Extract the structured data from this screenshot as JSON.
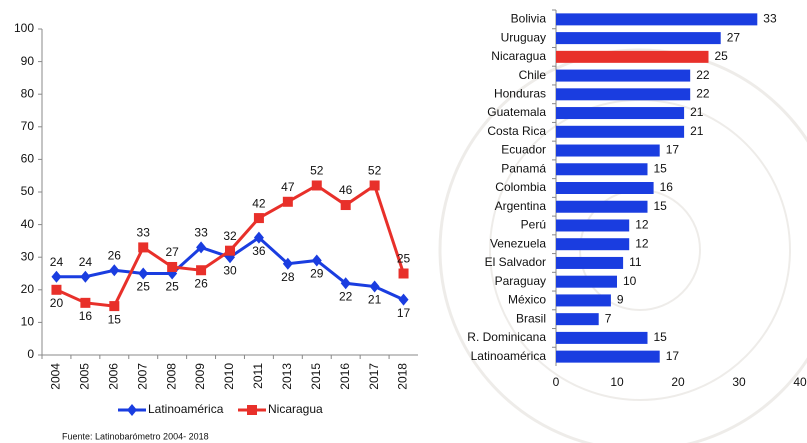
{
  "chart_data": [
    {
      "type": "line",
      "categories": [
        "2004",
        "2005",
        "2006",
        "2007",
        "2008",
        "2009",
        "2010",
        "2011",
        "2013",
        "2015",
        "2016",
        "2017",
        "2018"
      ],
      "series": [
        {
          "name": "Latinoamérica",
          "color": "#1a3de0",
          "marker": "diamond",
          "values": [
            24,
            24,
            26,
            25,
            25,
            33,
            30,
            36,
            28,
            29,
            22,
            21,
            17
          ]
        },
        {
          "name": "Nicaragua",
          "color": "#e8302a",
          "marker": "square",
          "values": [
            20,
            16,
            15,
            33,
            27,
            26,
            32,
            42,
            47,
            52,
            46,
            52,
            25
          ]
        }
      ],
      "ylim": [
        0,
        100
      ],
      "yticks": [
        0,
        10,
        20,
        30,
        40,
        50,
        60,
        70,
        80,
        90,
        100
      ],
      "grid": false,
      "legend": "bottom"
    },
    {
      "type": "hbar",
      "categories": [
        "Bolivia",
        "Uruguay",
        "Nicaragua",
        "Chile",
        "Honduras",
        "Guatemala",
        "Costa Rica",
        "Ecuador",
        "Panamá",
        "Colombia",
        "Argentina",
        "Perú",
        "Venezuela",
        "El Salvador",
        "Paraguay",
        "México",
        "Brasil",
        "R. Dominicana",
        "Latinoamérica"
      ],
      "values": [
        33,
        27,
        25,
        22,
        22,
        21,
        21,
        17,
        15,
        16,
        15,
        12,
        12,
        11,
        10,
        9,
        7,
        15,
        17
      ],
      "colors": [
        "#1a3de0",
        "#1a3de0",
        "#e8302a",
        "#1a3de0",
        "#1a3de0",
        "#1a3de0",
        "#1a3de0",
        "#1a3de0",
        "#1a3de0",
        "#1a3de0",
        "#1a3de0",
        "#1a3de0",
        "#1a3de0",
        "#1a3de0",
        "#1a3de0",
        "#1a3de0",
        "#1a3de0",
        "#1a3de0",
        "#1a3de0"
      ],
      "xlim": [
        0,
        40
      ],
      "xticks": [
        0,
        10,
        20,
        30,
        40
      ],
      "grid": false
    }
  ],
  "source": "Fuente: Latinobarómetro 2004- 2018"
}
